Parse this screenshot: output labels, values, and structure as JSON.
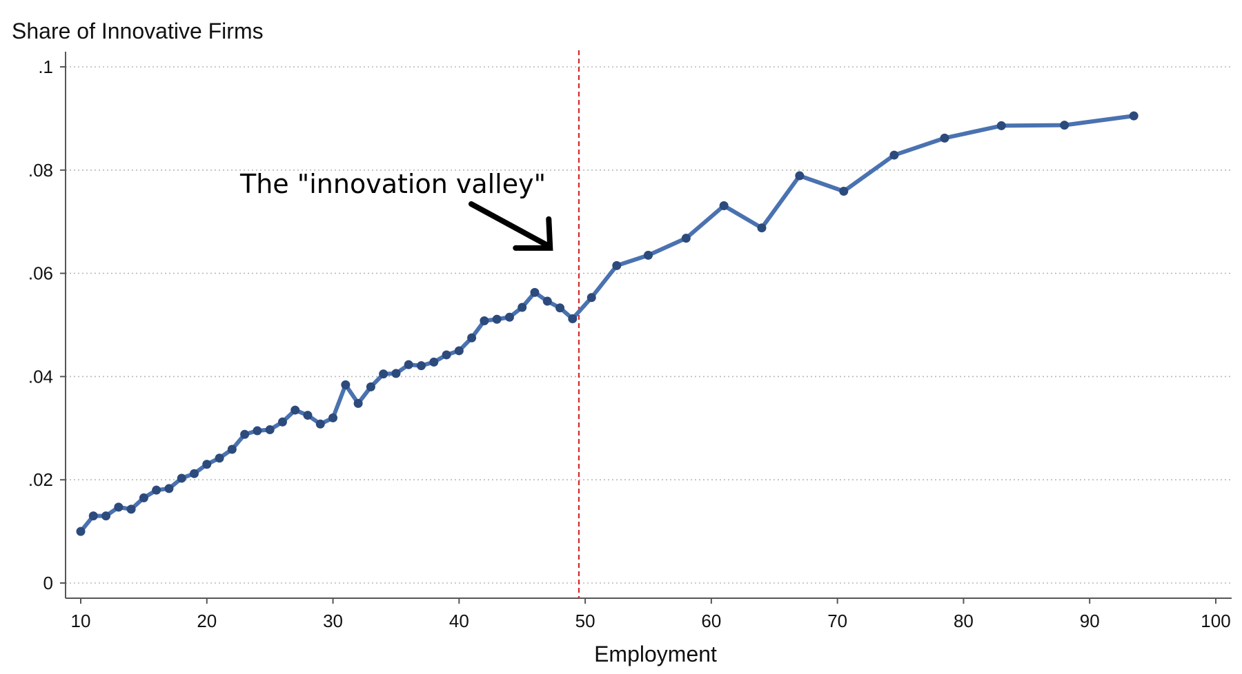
{
  "chart_data": {
    "type": "line",
    "title": "",
    "ylabel": "Share of Innovative Firms",
    "xlabel": "Employment",
    "xlim": [
      9,
      101
    ],
    "ylim": [
      -0.003,
      0.102
    ],
    "x_ticks": [
      10,
      20,
      30,
      40,
      50,
      60,
      70,
      80,
      90,
      100
    ],
    "x_tick_labels": [
      "10",
      "20",
      "30",
      "40",
      "50",
      "60",
      "70",
      "80",
      "90",
      "100"
    ],
    "y_ticks": [
      0,
      0.02,
      0.04,
      0.06,
      0.08,
      0.1
    ],
    "y_tick_labels": [
      "0",
      ".02",
      ".04",
      ".06",
      ".08",
      ".1"
    ],
    "grid": "horizontal dotted",
    "line_color": "#4a72b0",
    "marker_color": "#2c4a7c",
    "reference_line": {
      "x": 49.5,
      "color": "#d62728",
      "style": "dashed"
    },
    "annotation": {
      "text": "The \"innovation valley\"",
      "points_to_x": 47,
      "points_to_y": 0.0625
    },
    "series": [
      {
        "x": [
          10,
          11,
          12,
          13,
          14,
          15,
          16,
          17,
          18,
          19,
          20,
          21,
          22,
          23,
          24,
          25,
          26,
          27,
          28,
          29,
          30,
          31,
          32,
          33,
          34,
          35,
          36,
          37,
          38,
          39,
          40,
          41,
          42,
          43,
          44,
          45,
          46,
          47,
          48,
          49,
          50.5,
          52.5,
          55,
          58,
          61,
          64,
          67,
          70.5,
          74.5,
          78.5,
          83,
          88,
          93.5
        ],
        "y": [
          0.01,
          0.013,
          0.013,
          0.0147,
          0.0143,
          0.0165,
          0.018,
          0.0183,
          0.0203,
          0.0212,
          0.023,
          0.0242,
          0.0259,
          0.0288,
          0.0295,
          0.0297,
          0.0312,
          0.0335,
          0.0325,
          0.0308,
          0.032,
          0.0384,
          0.0348,
          0.038,
          0.0405,
          0.0406,
          0.0423,
          0.0421,
          0.0428,
          0.0442,
          0.045,
          0.0475,
          0.0508,
          0.0511,
          0.0515,
          0.0534,
          0.0563,
          0.0546,
          0.0533,
          0.0512,
          0.0553,
          0.0615,
          0.0635,
          0.0668,
          0.0731,
          0.0688,
          0.0789,
          0.0759,
          0.0829,
          0.0862,
          0.0886,
          0.0887,
          0.0905
        ]
      }
    ]
  }
}
